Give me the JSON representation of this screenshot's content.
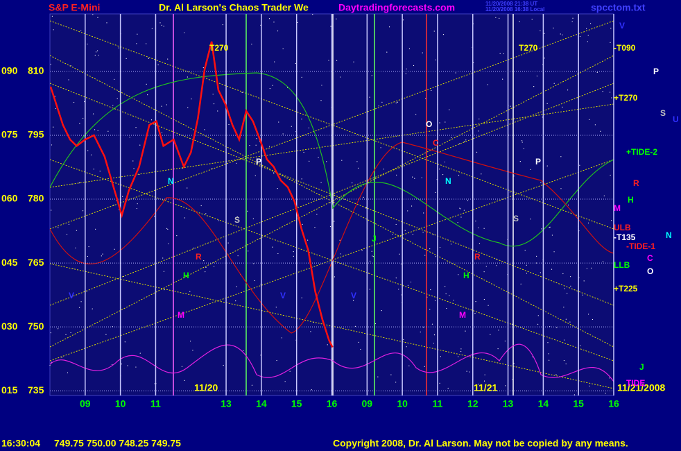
{
  "chart_data": {
    "type": "line",
    "header": {
      "symbol": "S&P E-Mini",
      "title": "Dr. Al Larson's Chaos Trader We",
      "site": "Daytradingforecasts.com",
      "utc_time": "11/20/2008 21:38 UT",
      "local_time": "11/20/2008 16:38 Local",
      "file": "spcctom.txt"
    },
    "day_labels": [
      "11/20",
      "11/21",
      "11/21/2008"
    ],
    "footer": {
      "time": "16:30:04",
      "quote": "749.75 750.00 748.25 749.75",
      "copyright": "Copyright 2008, Dr. Al Larson. May not be copied by any means."
    },
    "xlim": [
      -1,
      15
    ],
    "xticks": [
      {
        "value": 0,
        "label": "09"
      },
      {
        "value": 1,
        "label": "10"
      },
      {
        "value": 2,
        "label": "11"
      },
      {
        "value": 4,
        "label": "13"
      },
      {
        "value": 5,
        "label": "14"
      },
      {
        "value": 6,
        "label": "15"
      },
      {
        "value": 7,
        "label": "16"
      },
      {
        "value": 8,
        "label": "09"
      },
      {
        "value": 9,
        "label": "10"
      },
      {
        "value": 10,
        "label": "11"
      },
      {
        "value": 11,
        "label": "12"
      },
      {
        "value": 12,
        "label": "13"
      },
      {
        "value": 13,
        "label": "14"
      },
      {
        "value": 14,
        "label": "15"
      },
      {
        "value": 15,
        "label": "16"
      }
    ],
    "ylim": [
      733.9,
      823.5
    ],
    "yticks": [
      810,
      795,
      780,
      765,
      750,
      735
    ],
    "y2lim": [
      13.9,
      103.5
    ],
    "y2ticks": [
      {
        "value": 90,
        "label": "090"
      },
      {
        "value": 75,
        "label": "075"
      },
      {
        "value": 60,
        "label": "060"
      },
      {
        "value": 45,
        "label": "045"
      },
      {
        "value": 30,
        "label": "030"
      },
      {
        "value": 15,
        "label": "015"
      }
    ],
    "grid": true,
    "series": [
      {
        "name": "S&P E-Mini",
        "color": "#ff1010",
        "x": [
          -0.98,
          -0.63,
          -0.43,
          -0.24,
          0,
          0.25,
          0.55,
          0.75,
          1.04,
          1.24,
          1.53,
          1.82,
          2.02,
          2.22,
          2.51,
          2.8,
          3.0,
          3.2,
          3.39,
          3.59,
          3.78,
          3.98,
          4.18,
          4.37,
          4.57,
          4.76,
          4.96,
          5.16,
          5.35,
          5.55,
          5.75,
          5.94,
          6.14,
          6.33,
          6.53,
          6.73,
          6.92,
          7.02
        ],
        "values": [
          806.4,
          797.4,
          794,
          792.5,
          794,
          795,
          790,
          784.4,
          776.2,
          782,
          787.6,
          797.4,
          798.3,
          792.5,
          794,
          787.6,
          791,
          799,
          810.5,
          817,
          805.6,
          802.3,
          797.4,
          794,
          800.7,
          798.3,
          794,
          789.3,
          787.6,
          784.4,
          782.8,
          779.5,
          773,
          768,
          758.3,
          751.8,
          746.9,
          745.2
        ]
      }
    ],
    "annotations": [
      {
        "text": "T270",
        "color": "#ffff00"
      },
      {
        "text": "T270",
        "color": "#ffff00"
      },
      {
        "text": "O",
        "color": "#ffffff"
      },
      {
        "text": "C",
        "color": "#ff2020"
      },
      {
        "text": "N",
        "color": "#00ffff"
      },
      {
        "text": "N",
        "color": "#00ffff"
      },
      {
        "text": "P",
        "color": "#ffffff"
      },
      {
        "text": "P",
        "color": "#ffffff"
      },
      {
        "text": "S",
        "color": "#c0c0c0"
      },
      {
        "text": "S",
        "color": "#c0c0c0"
      },
      {
        "text": "R",
        "color": "#ff2020"
      },
      {
        "text": "R",
        "color": "#ff2020"
      },
      {
        "text": "H",
        "color": "#00ff00"
      },
      {
        "text": "H",
        "color": "#00ff00"
      },
      {
        "text": "M",
        "color": "#ff00ff"
      },
      {
        "text": "M",
        "color": "#ff00ff"
      },
      {
        "text": "V",
        "color": "#3030ff"
      },
      {
        "text": "V",
        "color": "#3030ff"
      },
      {
        "text": "V",
        "color": "#3030ff"
      },
      {
        "text": "J",
        "color": "#00ff00"
      },
      {
        "text": "V",
        "color": "#3030ff"
      },
      {
        "text": "-T090",
        "color": "#ffff00"
      },
      {
        "text": "P",
        "color": "#ffffff"
      },
      {
        "text": "+T270",
        "color": "#ffff00"
      },
      {
        "text": "S",
        "color": "#c0c0c0"
      },
      {
        "text": "U",
        "color": "#3030ff"
      },
      {
        "text": "+TIDE-2",
        "color": "#00ff00"
      },
      {
        "text": "R",
        "color": "#ff2020"
      },
      {
        "text": "H",
        "color": "#00ff00"
      },
      {
        "text": "M",
        "color": "#ff00ff"
      },
      {
        "text": "ULB",
        "color": "#ff2020"
      },
      {
        "text": "N",
        "color": "#00ffff"
      },
      {
        "text": "-T135",
        "color": "#ffffff"
      },
      {
        "text": "-TIDE-1",
        "color": "#ff2020"
      },
      {
        "text": "C",
        "color": "#ff00ff"
      },
      {
        "text": "LLB",
        "color": "#00ff00"
      },
      {
        "text": "O",
        "color": "#ffffff"
      },
      {
        "text": "+T225",
        "color": "#ffff00"
      },
      {
        "text": "J",
        "color": "#00ff00"
      },
      {
        "text": "TIDE",
        "color": "#ff00ff"
      }
    ]
  }
}
